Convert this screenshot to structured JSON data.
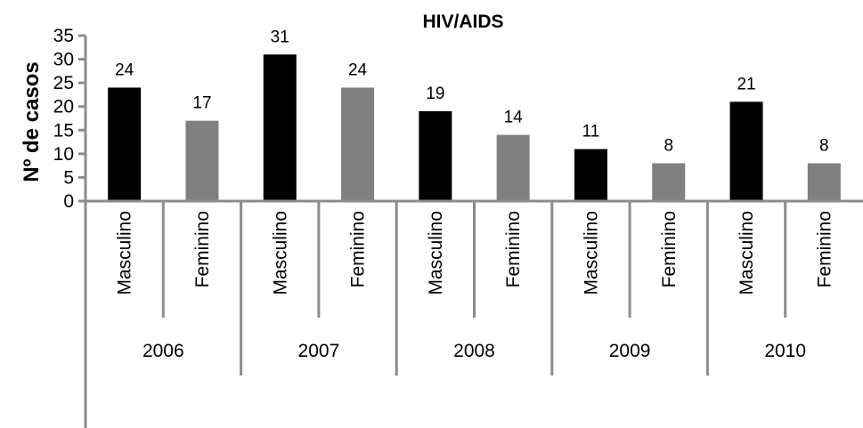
{
  "chart_data": {
    "type": "bar",
    "title": "HIV/AIDS",
    "ylabel": "Nº de casos",
    "xlabel": "",
    "ylim": [
      0,
      35
    ],
    "yticks": [
      0,
      5,
      10,
      15,
      20,
      25,
      30,
      35
    ],
    "grid": false,
    "groups": [
      {
        "label": "2006",
        "bars": [
          {
            "category": "Masculino",
            "value": 24
          },
          {
            "category": "Feminino",
            "value": 17
          }
        ]
      },
      {
        "label": "2007",
        "bars": [
          {
            "category": "Masculino",
            "value": 31
          },
          {
            "category": "Feminino",
            "value": 24
          }
        ]
      },
      {
        "label": "2008",
        "bars": [
          {
            "category": "Masculino",
            "value": 19
          },
          {
            "category": "Feminino",
            "value": 14
          }
        ]
      },
      {
        "label": "2009",
        "bars": [
          {
            "category": "Masculino",
            "value": 11
          },
          {
            "category": "Feminino",
            "value": 8
          }
        ]
      },
      {
        "label": "2010",
        "bars": [
          {
            "category": "Masculino",
            "value": 21
          },
          {
            "category": "Feminino",
            "value": 8
          }
        ]
      }
    ],
    "colors": {
      "Masculino": "#000000",
      "Feminino": "#808080"
    }
  }
}
